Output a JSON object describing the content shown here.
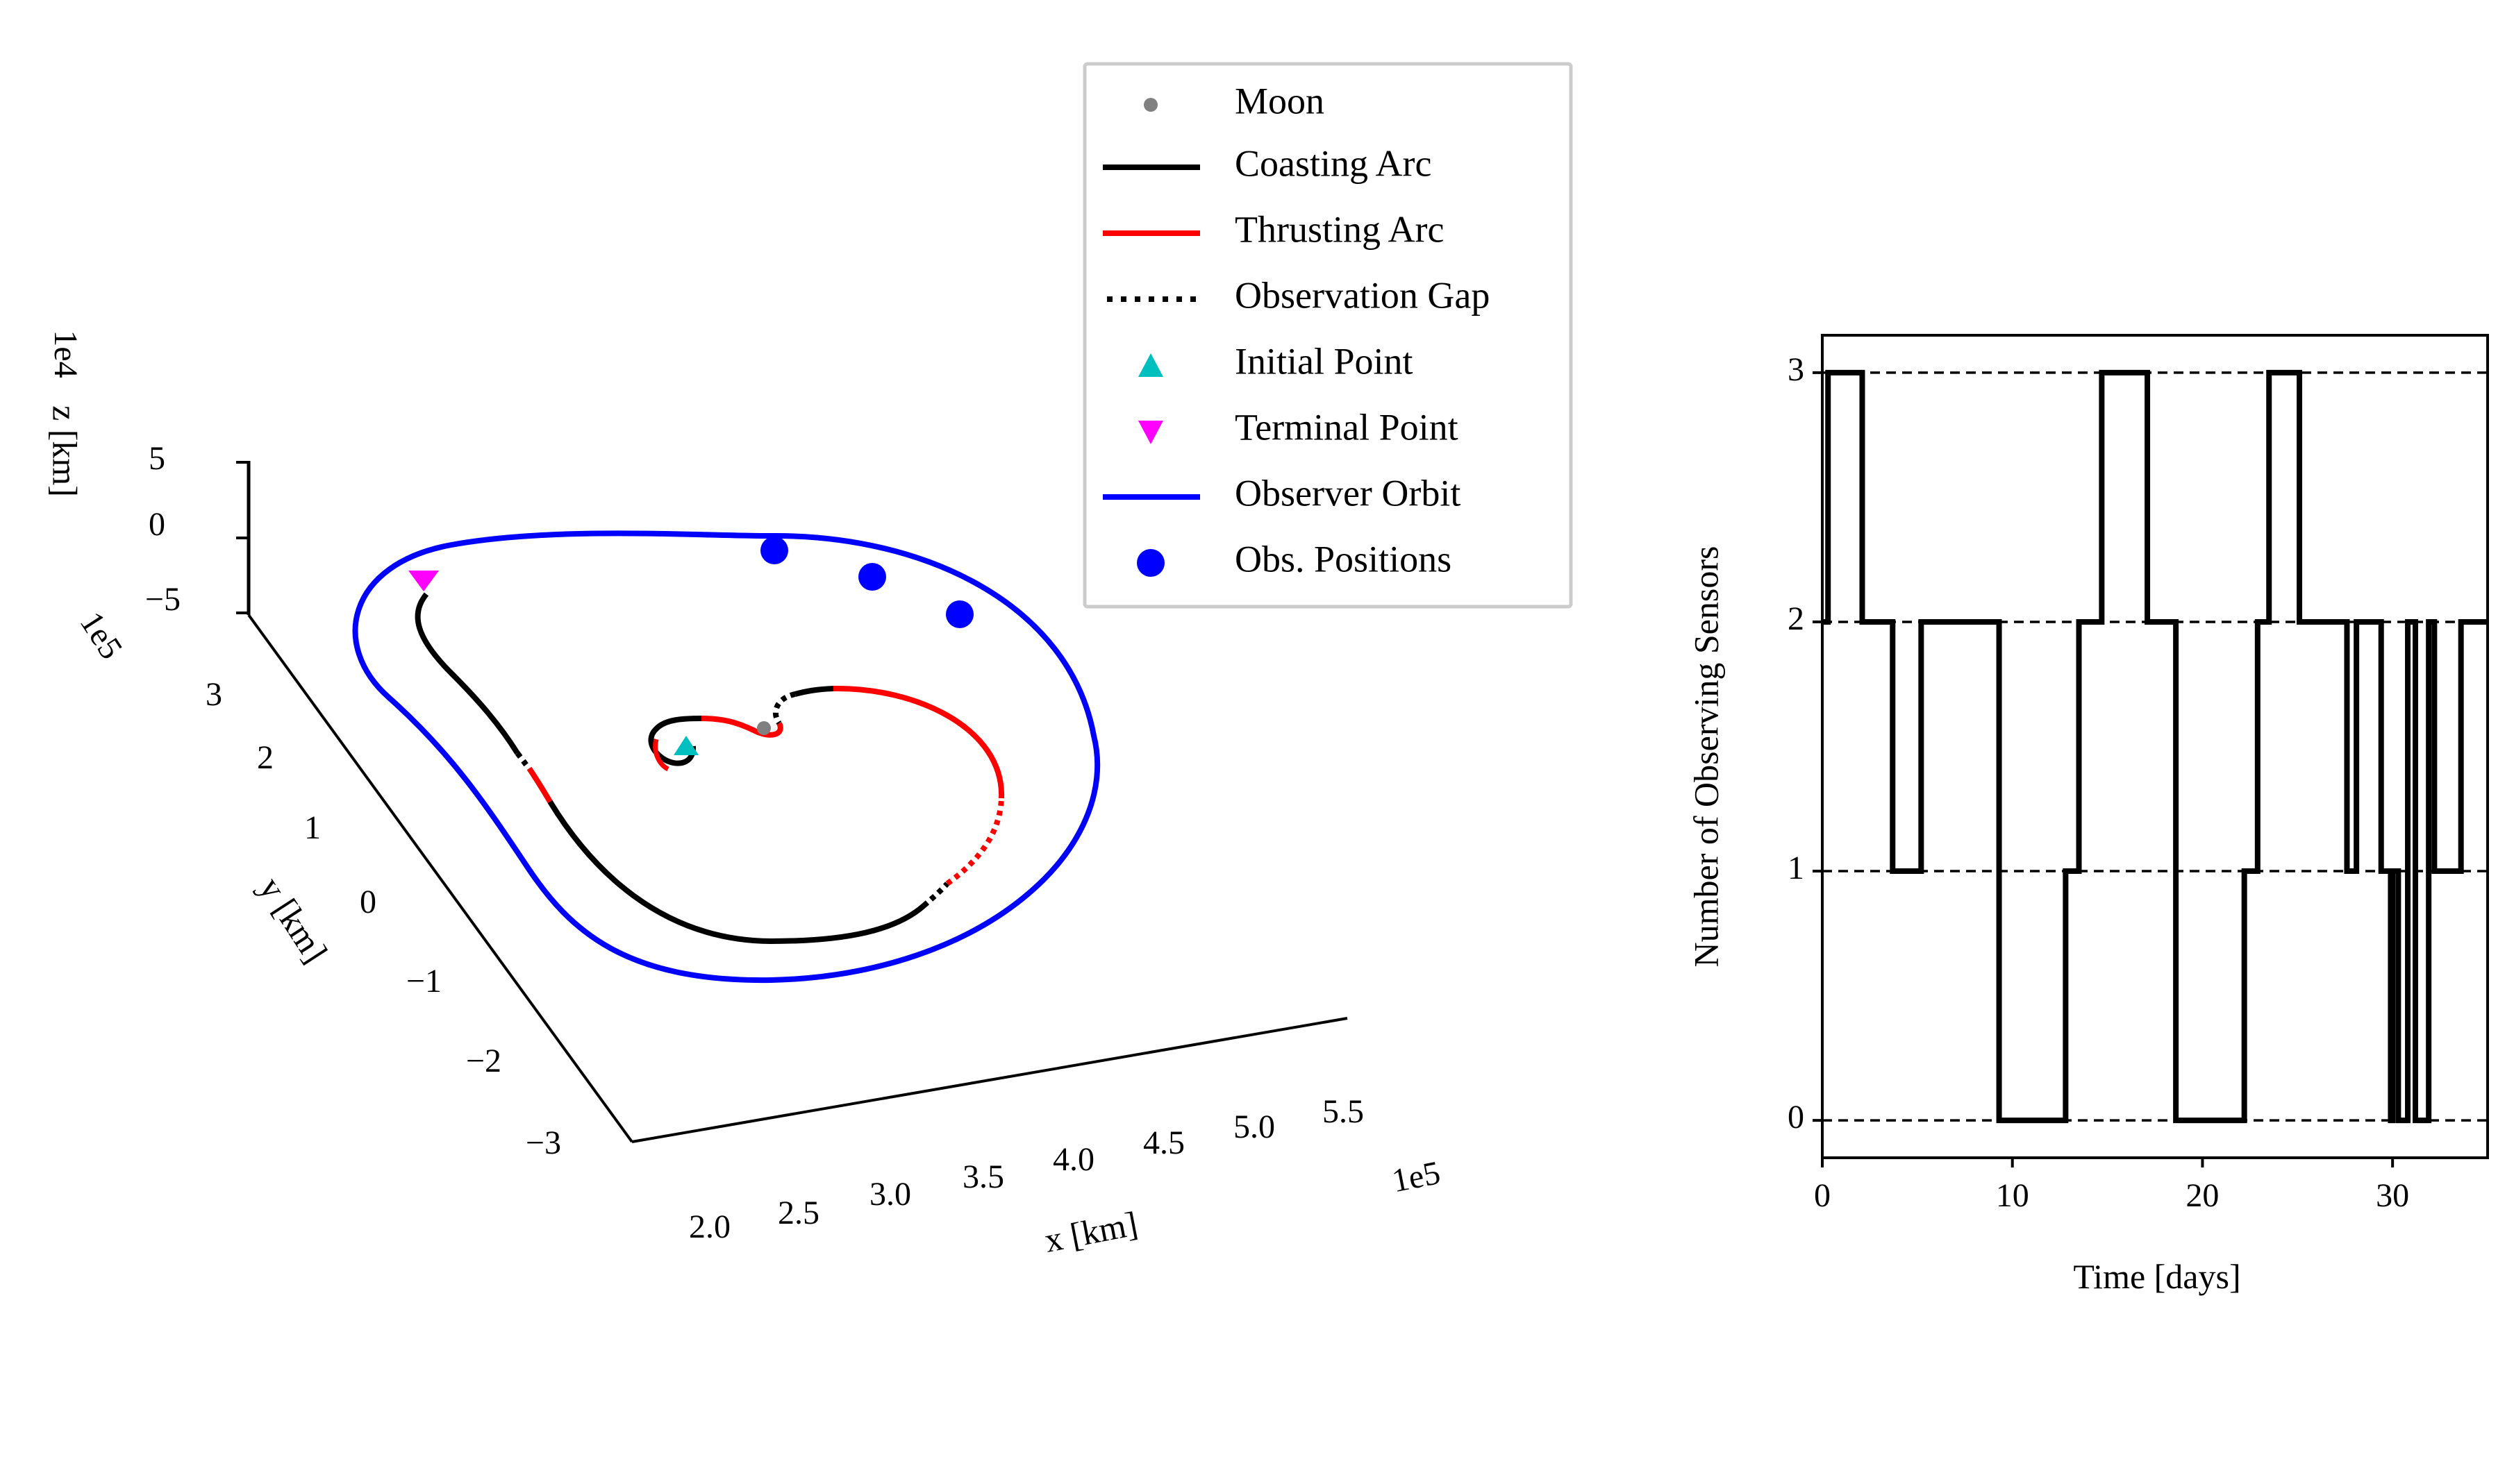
{
  "chart_data": [
    {
      "type": "line",
      "projection": "3d",
      "title": "",
      "axes": {
        "x": {
          "label": "x [km]",
          "offset_text": "1e5",
          "ticks": [
            "2.0",
            "2.5",
            "3.0",
            "3.5",
            "4.0",
            "4.5",
            "5.0",
            "5.5"
          ]
        },
        "y": {
          "label": "y [km]",
          "offset_text": "1e5",
          "ticks": [
            "−3",
            "−2",
            "−1",
            "0",
            "1",
            "2",
            "3"
          ]
        },
        "z": {
          "label": "z [km]",
          "offset_text": "1e4",
          "ticks": [
            "−5",
            "0",
            "5"
          ]
        }
      },
      "legend": {
        "placement": "top-right",
        "entries": [
          {
            "label": "Moon",
            "marker": "dot",
            "color": "#808080"
          },
          {
            "label": "Coasting Arc",
            "marker": "solid-line",
            "color": "#000000"
          },
          {
            "label": "Thrusting Arc",
            "marker": "solid-line",
            "color": "#ff0000"
          },
          {
            "label": "Observation Gap",
            "marker": "dotted-line",
            "color": "#000000"
          },
          {
            "label": "Initial Point",
            "marker": "triangle-up",
            "color": "#00bfbf"
          },
          {
            "label": "Terminal Point",
            "marker": "triangle-down",
            "color": "#ff00ff"
          },
          {
            "label": "Observer Orbit",
            "marker": "solid-line",
            "color": "#0000ff"
          },
          {
            "label": "Obs. Positions",
            "marker": "dot",
            "color": "#0000ff"
          }
        ]
      },
      "series": [
        {
          "name": "Moon",
          "color": "#808080",
          "points_xy_1e5": [
            [
              3.84,
              0.0
            ]
          ]
        },
        {
          "name": "Initial Point",
          "color": "#00bfbf",
          "points_xy_1e5": [
            [
              3.46,
              -0.17
            ]
          ]
        },
        {
          "name": "Terminal Point",
          "color": "#ff00ff",
          "points_xy_1e5": [
            [
              2.46,
              2.94
            ]
          ]
        },
        {
          "name": "Obs. Positions",
          "color": "#0000ff",
          "points_xy_1e5": [
            [
              3.22,
              3.34
            ],
            [
              3.55,
              3.17
            ],
            [
              3.85,
              2.98
            ]
          ]
        }
      ]
    },
    {
      "type": "line",
      "title": "",
      "xlabel": "Time [days]",
      "ylabel": "Number of Observing Sensors",
      "xlim": [
        0,
        35
      ],
      "ylim": [
        -0.15,
        3.15
      ],
      "xticks": [
        0,
        10,
        20,
        30
      ],
      "yticks": [
        0,
        1,
        2,
        3
      ],
      "grid": "horizontal dashed at integer levels",
      "color": "#000000",
      "series": [
        {
          "step": "post",
          "x": [
            0.0,
            0.3,
            1.2,
            2.1,
            3.7,
            4.3,
            5.2,
            7.0,
            9.3,
            12.8,
            13.5,
            14.7,
            17.1,
            18.6,
            22.2,
            22.9,
            23.5,
            25.1,
            27.6,
            28.1,
            29.4,
            29.9,
            30.0,
            30.3,
            30.8,
            31.2,
            31.9,
            32.2,
            33.6,
            34.1,
            35.0
          ],
          "y": [
            2,
            3,
            3,
            2,
            1,
            1,
            2,
            2,
            0,
            1,
            2,
            3,
            2,
            0,
            1,
            2,
            3,
            2,
            1,
            2,
            1,
            0,
            1,
            0,
            2,
            0,
            2,
            1,
            2,
            2,
            2
          ]
        }
      ]
    }
  ]
}
